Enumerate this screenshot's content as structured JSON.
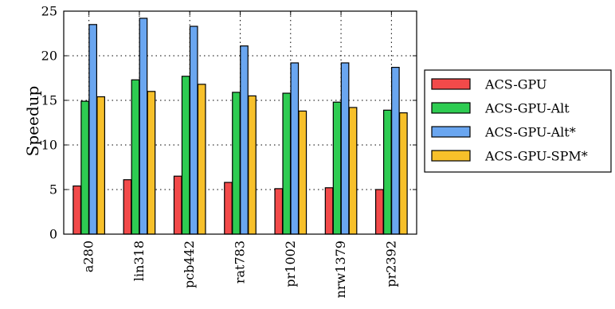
{
  "chart_data": {
    "type": "bar",
    "title": "",
    "xlabel": "",
    "ylabel": "Speedup",
    "ylim": [
      0,
      25
    ],
    "yticks": [
      0,
      5,
      10,
      15,
      20,
      25
    ],
    "grid": true,
    "legend_position": "right",
    "categories": [
      "a280",
      "lin318",
      "pcb442",
      "rat783",
      "pr1002",
      "nrw1379",
      "pr2392"
    ],
    "series": [
      {
        "name": "ACS-GPU",
        "color": "#f24a4a",
        "values": [
          5.4,
          6.1,
          6.5,
          5.8,
          5.1,
          5.2,
          5.0
        ]
      },
      {
        "name": "ACS-GPU-Alt",
        "color": "#2ecc52",
        "values": [
          14.9,
          17.3,
          17.7,
          15.9,
          15.8,
          14.8,
          13.9
        ]
      },
      {
        "name": "ACS-GPU-Alt*",
        "color": "#6aa6f0",
        "values": [
          23.5,
          24.2,
          23.3,
          21.1,
          19.2,
          19.2,
          18.7
        ]
      },
      {
        "name": "ACS-GPU-SPM*",
        "color": "#f7c02a",
        "values": [
          15.4,
          16.0,
          16.8,
          15.5,
          13.8,
          14.2,
          13.6
        ]
      }
    ]
  }
}
